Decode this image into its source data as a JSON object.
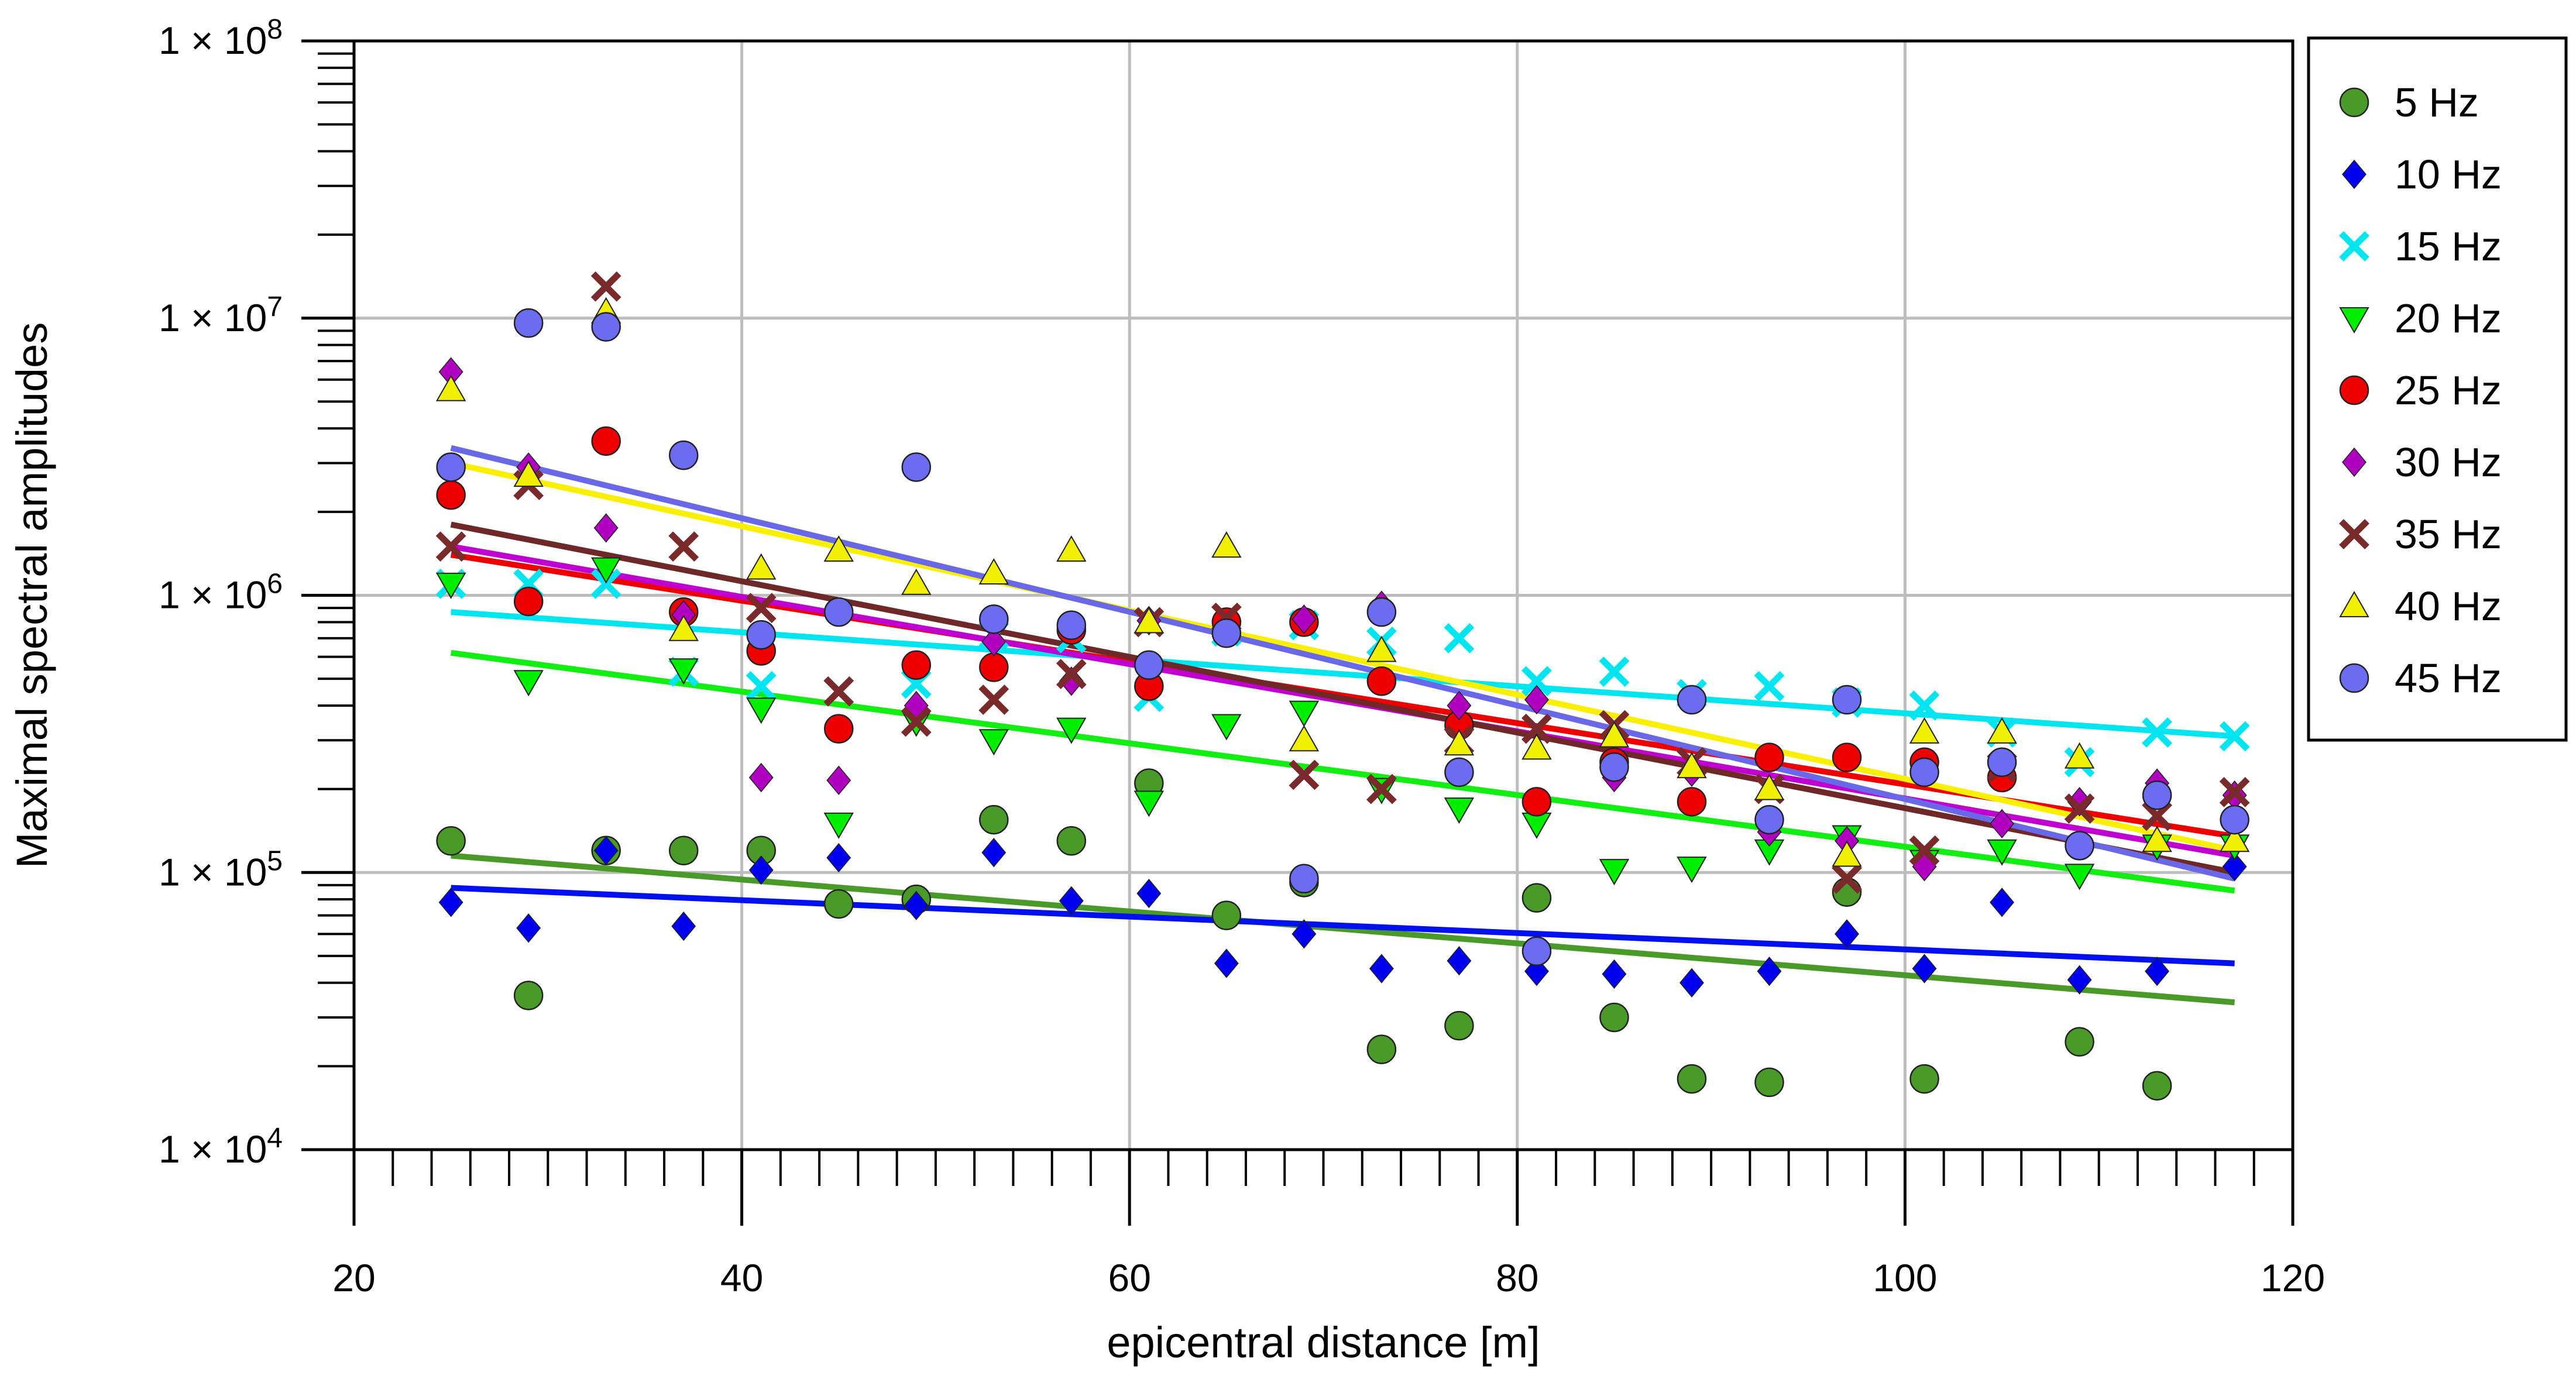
{
  "chart_data": {
    "type": "scatter",
    "title": "",
    "xlabel": "epicentral distance [m]",
    "ylabel": "Maximal spectral amplitudes",
    "xlim": [
      20,
      120
    ],
    "ylim": [
      10000,
      100000000
    ],
    "y_scale": "log",
    "x_ticks": [
      20,
      40,
      60,
      80,
      100,
      120
    ],
    "x_tick_labels": [
      "20",
      "40",
      "60",
      "80",
      "100",
      "120"
    ],
    "y_ticks": [
      10000,
      100000,
      1000000,
      10000000,
      100000000
    ],
    "y_tick_mantissa": "1 × 10",
    "y_tick_exponents": [
      "4",
      "5",
      "6",
      "7",
      "8"
    ],
    "grid": true,
    "legend_position": "right",
    "series": [
      {
        "name": "5 Hz",
        "marker": "circle",
        "color": "#4a9a2a",
        "line_color": "#4a9a2a",
        "x": [
          25,
          29,
          33,
          37,
          41,
          45,
          49,
          53,
          57,
          61,
          65,
          69,
          73,
          77,
          81,
          85,
          89,
          93,
          97,
          101,
          109,
          113
        ],
        "y": [
          130000,
          36000,
          120000,
          120000,
          120000,
          77000,
          80000,
          155000,
          130000,
          210000,
          70000,
          92000,
          23000,
          28000,
          81000,
          30000,
          18000,
          17500,
          85000,
          18000,
          24500,
          17000
        ],
        "fit": [
          [
            25,
            115000
          ],
          [
            117,
            34000
          ]
        ]
      },
      {
        "name": "10 Hz",
        "marker": "diamond",
        "color": "#0000ee",
        "line_color": "#0010ee",
        "x": [
          25,
          29,
          33,
          37,
          41,
          45,
          49,
          53,
          57,
          61,
          65,
          69,
          73,
          77,
          81,
          85,
          89,
          93,
          97,
          101,
          105,
          109,
          113,
          117
        ],
        "y": [
          78000,
          63000,
          120000,
          64000,
          102000,
          113000,
          76000,
          118000,
          79000,
          84000,
          47000,
          60000,
          45000,
          48000,
          44000,
          43000,
          40000,
          44000,
          60000,
          45000,
          78000,
          41000,
          44000,
          105000
        ],
        "fit": [
          [
            25,
            88000
          ],
          [
            117,
            47000
          ]
        ]
      },
      {
        "name": "15 Hz",
        "marker": "x",
        "color": "#00e5f0",
        "line_color": "#00e5f0",
        "x": [
          25,
          29,
          33,
          37,
          41,
          45,
          49,
          53,
          57,
          61,
          65,
          69,
          73,
          77,
          81,
          85,
          89,
          93,
          97,
          101,
          105,
          109,
          113,
          117
        ],
        "y": [
          1100000,
          1100000,
          1100000,
          530000,
          470000,
          450000,
          480000,
          720000,
          700000,
          430000,
          740000,
          780000,
          680000,
          700000,
          490000,
          530000,
          440000,
          470000,
          410000,
          400000,
          320000,
          250000,
          320000,
          310000
        ],
        "fit": [
          [
            25,
            870000
          ],
          [
            117,
            310000
          ]
        ]
      },
      {
        "name": "20 Hz",
        "marker": "triangle-down",
        "color": "#00ee00",
        "line_color": "#11ee11",
        "x": [
          25,
          29,
          33,
          37,
          41,
          45,
          49,
          53,
          57,
          61,
          65,
          69,
          73,
          77,
          81,
          85,
          89,
          93,
          97,
          101,
          105,
          109,
          113,
          117
        ],
        "y": [
          1100000,
          490000,
          1250000,
          540000,
          390000,
          150000,
          350000,
          300000,
          330000,
          180000,
          340000,
          380000,
          200000,
          170000,
          150000,
          102000,
          104000,
          120000,
          135000,
          110000,
          120000,
          98000,
          125000,
          125000
        ],
        "fit": [
          [
            25,
            620000
          ],
          [
            117,
            86000
          ]
        ]
      },
      {
        "name": "25 Hz",
        "marker": "circle",
        "color": "#ee0000",
        "line_color": "#ee0000",
        "x": [
          25,
          29,
          33,
          37,
          41,
          45,
          49,
          53,
          57,
          61,
          65,
          69,
          73,
          77,
          81,
          85,
          89,
          93,
          97,
          101,
          105
        ],
        "y": [
          2300000,
          950000,
          3600000,
          870000,
          630000,
          330000,
          560000,
          550000,
          750000,
          470000,
          800000,
          800000,
          490000,
          340000,
          180000,
          250000,
          180000,
          260000,
          260000,
          250000,
          220000
        ],
        "fit": [
          [
            25,
            1400000
          ],
          [
            117,
            135000
          ]
        ]
      },
      {
        "name": "30 Hz",
        "marker": "diamond",
        "color": "#b000c0",
        "line_color": "#c000d0",
        "x": [
          25,
          29,
          33,
          37,
          41,
          45,
          49,
          53,
          57,
          61,
          65,
          69,
          73,
          77,
          81,
          85,
          89,
          93,
          97,
          101,
          105,
          109,
          113,
          117
        ],
        "y": [
          6400000,
          2900000,
          1750000,
          850000,
          220000,
          215000,
          400000,
          680000,
          490000,
          810000,
          730000,
          820000,
          920000,
          400000,
          420000,
          220000,
          230000,
          140000,
          130000,
          105000,
          150000,
          180000,
          210000,
          190000
        ],
        "fit": [
          [
            25,
            1500000
          ],
          [
            117,
            115000
          ]
        ]
      },
      {
        "name": "35 Hz",
        "marker": "x",
        "color": "#7a2a2a",
        "line_color": "#6e2828",
        "x": [
          25,
          29,
          33,
          37,
          41,
          45,
          49,
          53,
          57,
          61,
          65,
          69,
          73,
          77,
          81,
          85,
          89,
          93,
          97,
          101,
          105,
          109,
          113,
          117
        ],
        "y": [
          1500000,
          2500000,
          13000000,
          1500000,
          900000,
          450000,
          350000,
          420000,
          520000,
          800000,
          830000,
          225000,
          200000,
          300000,
          330000,
          340000,
          250000,
          200000,
          95000,
          120000,
          240000,
          170000,
          160000,
          195000
        ],
        "fit": [
          [
            25,
            1800000
          ],
          [
            117,
            100000
          ]
        ]
      },
      {
        "name": "40 Hz",
        "marker": "triangle-up",
        "color": "#f0f000",
        "line_color": "#f8f000",
        "x": [
          25,
          29,
          33,
          37,
          41,
          45,
          49,
          53,
          57,
          61,
          65,
          69,
          73,
          77,
          81,
          85,
          89,
          93,
          97,
          101,
          105,
          109,
          113,
          117
        ],
        "y": [
          5500000,
          2700000,
          10500000,
          750000,
          1250000,
          1450000,
          1100000,
          1200000,
          1450000,
          800000,
          1500000,
          300000,
          630000,
          290000,
          280000,
          310000,
          240000,
          200000,
          115000,
          320000,
          320000,
          260000,
          130000,
          130000
        ],
        "fit": [
          [
            25,
            3000000
          ],
          [
            117,
            120000
          ]
        ]
      },
      {
        "name": "45 Hz",
        "marker": "circle",
        "color": "#6c6cf0",
        "line_color": "#6868e8",
        "x": [
          25,
          29,
          33,
          37,
          41,
          45,
          49,
          53,
          57,
          61,
          65,
          69,
          73,
          77,
          81,
          85,
          89,
          93,
          97,
          101,
          105,
          109,
          113,
          117
        ],
        "y": [
          2900000,
          9600000,
          9300000,
          3200000,
          720000,
          870000,
          2900000,
          820000,
          780000,
          560000,
          730000,
          95000,
          870000,
          230000,
          52000,
          240000,
          420000,
          155000,
          420000,
          230000,
          250000,
          125000,
          190000,
          155000
        ],
        "fit": [
          [
            25,
            3400000
          ],
          [
            117,
            95000
          ]
        ]
      }
    ]
  }
}
